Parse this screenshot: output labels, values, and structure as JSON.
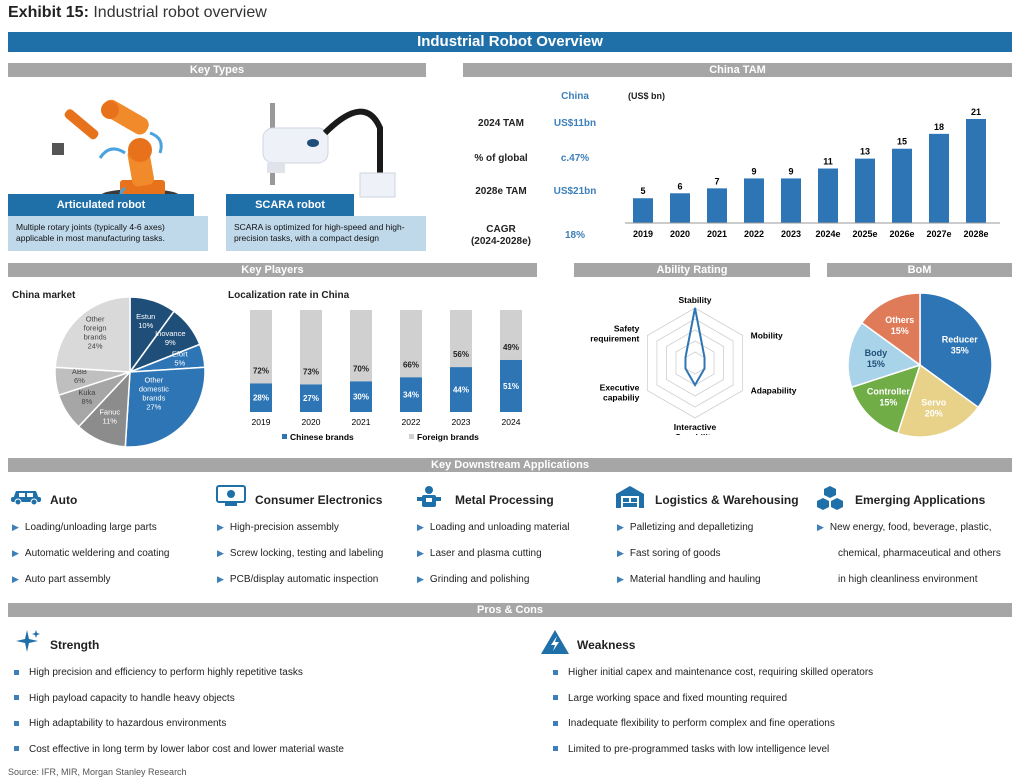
{
  "exhibit": {
    "label": "Exhibit 15:",
    "title": "Industrial robot overview"
  },
  "banner": "Industrial Robot Overview",
  "sections": {
    "key_types": "Key Types",
    "china_tam": "China TAM",
    "key_players": "Key Players",
    "ability_rating": "Ability Rating",
    "bom": "BoM",
    "downstream": "Key Downstream Applications",
    "pros_cons": "Pros & Cons"
  },
  "key_types": [
    {
      "name": "Articulated robot",
      "desc": "Multiple rotary joints (typically 4-6 axes) applicable in most manufacturing tasks."
    },
    {
      "name": "SCARA robot",
      "desc": "SCARA is optimized for high-speed and high-precision tasks, with a compact design"
    }
  ],
  "tam": {
    "header": "China",
    "unit": "(US$ bn)",
    "rows": [
      {
        "label": "2024 TAM",
        "value": "US$11bn"
      },
      {
        "label": "% of global",
        "value": "c.47%"
      },
      {
        "label": "2028e TAM",
        "value": "US$21bn"
      },
      {
        "label": "CAGR",
        "label2": "(2024-2028e)",
        "value": "18%"
      }
    ]
  },
  "players": {
    "china_market_title": "China market",
    "localization_title": "Localization rate in China",
    "legend_chinese": "Chinese brands",
    "legend_foreign": "Foreign brands"
  },
  "colors": {
    "blue": "#2e75b6",
    "darkblue": "#1f4e79",
    "lightgrey": "#d0d0d0",
    "grey": "#a6a6a6",
    "darkgrey": "#808080",
    "banner": "#1f6fa8"
  },
  "chart_data": [
    {
      "type": "bar",
      "title": "China TAM",
      "ylabel": "(US$ bn)",
      "categories": [
        "2019",
        "2020",
        "2021",
        "2022",
        "2023",
        "2024e",
        "2025e",
        "2026e",
        "2027e",
        "2028e"
      ],
      "values": [
        5,
        6,
        7,
        9,
        9,
        11,
        13,
        15,
        18,
        21
      ],
      "ylim": [
        0,
        21
      ]
    },
    {
      "type": "pie",
      "title": "China market",
      "slices": [
        {
          "label": "Estun",
          "pct": "10%",
          "value": 10,
          "color": "#1f4e79"
        },
        {
          "label": "Inovance",
          "pct": "9%",
          "value": 9,
          "color": "#1f4e79"
        },
        {
          "label": "Efort",
          "pct": "5%",
          "value": 5,
          "color": "#2e75b6"
        },
        {
          "label": "Other domestic brands",
          "pct": "27%",
          "value": 27,
          "color": "#2e75b6"
        },
        {
          "label": "Fanuc",
          "pct": "11%",
          "value": 11,
          "color": "#8c8c8c"
        },
        {
          "label": "Kuka",
          "pct": "8%",
          "value": 8,
          "color": "#a6a6a6"
        },
        {
          "label": "ABB",
          "pct": "6%",
          "value": 6,
          "color": "#bfbfbf"
        },
        {
          "label": "Other foreign brands",
          "pct": "24%",
          "value": 24,
          "color": "#d9d9d9"
        }
      ]
    },
    {
      "type": "bar",
      "title": "Localization rate in China",
      "categories": [
        "2019",
        "2020",
        "2021",
        "2022",
        "2023",
        "2024"
      ],
      "series": [
        {
          "name": "Chinese brands",
          "values": [
            28,
            27,
            30,
            34,
            44,
            51
          ],
          "labels": [
            "28%",
            "27%",
            "30%",
            "34%",
            "44%",
            "51%"
          ]
        },
        {
          "name": "Foreign brands",
          "values": [
            72,
            73,
            70,
            66,
            56,
            49
          ],
          "labels": [
            "72%",
            "73%",
            "70%",
            "66%",
            "56%",
            "49%"
          ]
        }
      ],
      "ylim": [
        0,
        100
      ]
    },
    {
      "type": "radar",
      "title": "Ability Rating",
      "axes": [
        "Stability",
        "Mobility",
        "Adapability",
        "Interactive Capability",
        "Executive capabiliy",
        "Safety requirement"
      ],
      "values": [
        5,
        1,
        1,
        2,
        1,
        1
      ],
      "max": 5
    },
    {
      "type": "pie",
      "title": "BoM",
      "slices": [
        {
          "label": "Reducer",
          "pct": "35%",
          "value": 35,
          "color": "#2e75b6"
        },
        {
          "label": "Servo",
          "pct": "20%",
          "value": 20,
          "color": "#e8d28a"
        },
        {
          "label": "Controller",
          "pct": "15%",
          "value": 15,
          "color": "#70ad47"
        },
        {
          "label": "Body",
          "pct": "15%",
          "value": 15,
          "color": "#a9d3e8"
        },
        {
          "label": "Others",
          "pct": "15%",
          "value": 15,
          "color": "#e07b5a"
        }
      ]
    }
  ],
  "applications": [
    {
      "icon": "car-icon",
      "title": "Auto",
      "items": [
        "Loading/unloading large parts",
        "Automatic weldering and coating",
        "Auto part assembly"
      ]
    },
    {
      "icon": "monitor-icon",
      "title": "Consumer Electronics",
      "items": [
        "High-precision assembly",
        "Screw locking, testing and labeling",
        "PCB/display automatic inspection"
      ]
    },
    {
      "icon": "worker-icon",
      "title": "Metal Processing",
      "items": [
        "Loading and unloading material",
        "Laser and plasma cutting",
        "Grinding and polishing"
      ]
    },
    {
      "icon": "warehouse-icon",
      "title": "Logistics & Warehousing",
      "items": [
        "Palletizing and depalletizing",
        "Fast soring of goods",
        "Material handling and hauling"
      ]
    },
    {
      "icon": "cubes-icon",
      "title": "Emerging Applications",
      "items": [
        "New energy, food, beverage, plastic,",
        "chemical, pharmaceutical and others",
        "in high cleanliness environment"
      ]
    }
  ],
  "pros": {
    "title": "Strength",
    "items": [
      "High precision and efficiency to perform highly repetitive tasks",
      "High payload capacity to handle heavy objects",
      "High adaptability to hazardous environments",
      "Cost effective in long term by lower labor cost and lower material waste"
    ]
  },
  "cons": {
    "title": "Weakness",
    "items": [
      "Higher initial capex and maintenance cost, requiring skilled operators",
      "Large working space and fixed mounting required",
      "Inadequate flexibility to perform complex and fine operations",
      "Limited to pre-programmed tasks with low intelligence level"
    ]
  },
  "source": "Source: IFR, MIR, Morgan Stanley Research"
}
